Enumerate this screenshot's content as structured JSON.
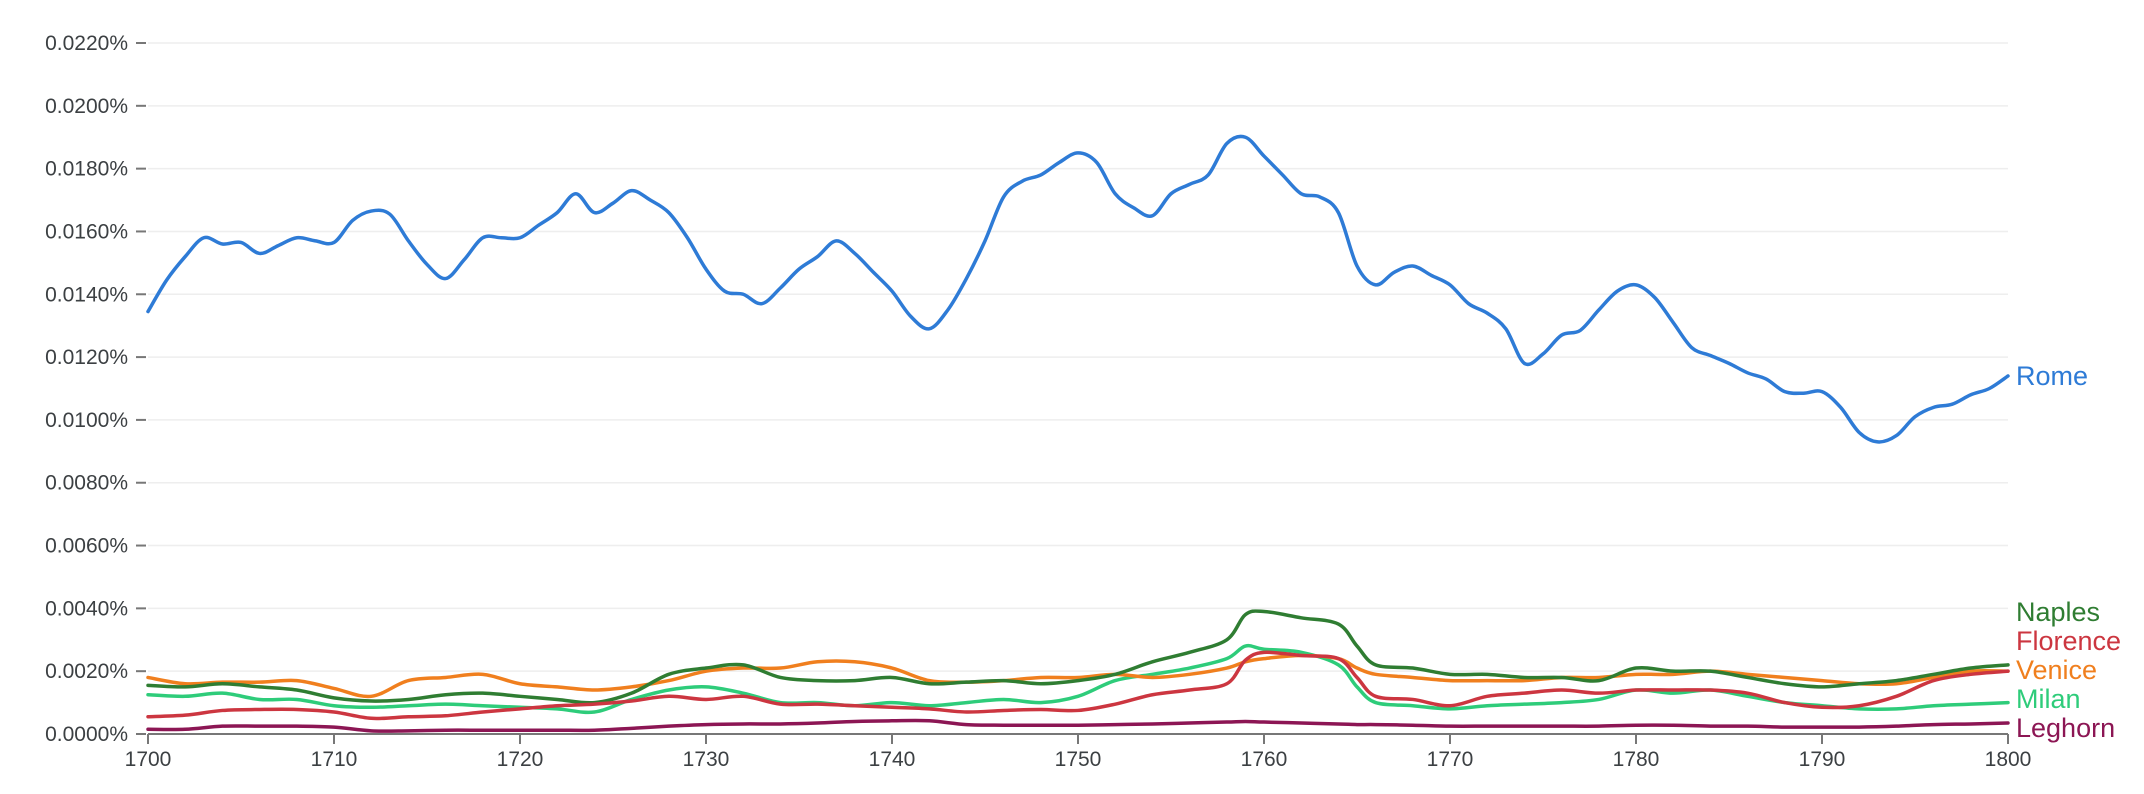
{
  "chart_data": {
    "type": "line",
    "title": "",
    "xlabel": "",
    "ylabel": "",
    "xlim": [
      1700,
      1800
    ],
    "ylim": [
      0,
      0.022
    ],
    "grid": true,
    "legend": "inline-right",
    "y_ticks": [
      "0.0000%",
      "0.0020%",
      "0.0040%",
      "0.0060%",
      "0.0080%",
      "0.0100%",
      "0.0120%",
      "0.0140%",
      "0.0160%",
      "0.0180%",
      "0.0200%",
      "0.0220%"
    ],
    "x_ticks": [
      "1700",
      "1710",
      "1720",
      "1730",
      "1740",
      "1750",
      "1760",
      "1770",
      "1780",
      "1790",
      "1800"
    ],
    "series": [
      {
        "name": "Rome",
        "color": "#2e7bd6",
        "x": [
          1700,
          1701,
          1702,
          1703,
          1704,
          1705,
          1706,
          1707,
          1708,
          1709,
          1710,
          1711,
          1712,
          1713,
          1714,
          1715,
          1716,
          1717,
          1718,
          1719,
          1720,
          1721,
          1722,
          1723,
          1724,
          1725,
          1726,
          1727,
          1728,
          1729,
          1730,
          1731,
          1732,
          1733,
          1734,
          1735,
          1736,
          1737,
          1738,
          1739,
          1740,
          1741,
          1742,
          1743,
          1744,
          1745,
          1746,
          1747,
          1748,
          1749,
          1750,
          1751,
          1752,
          1753,
          1754,
          1755,
          1756,
          1757,
          1758,
          1759,
          1760,
          1761,
          1762,
          1763,
          1764,
          1765,
          1766,
          1767,
          1768,
          1769,
          1770,
          1771,
          1772,
          1773,
          1774,
          1775,
          1776,
          1777,
          1778,
          1779,
          1780,
          1781,
          1782,
          1783,
          1784,
          1785,
          1786,
          1787,
          1788,
          1789,
          1790,
          1791,
          1792,
          1793,
          1794,
          1795,
          1796,
          1797,
          1798,
          1799,
          1800
        ],
        "values": [
          0.01345,
          0.01445,
          0.0152,
          0.0158,
          0.0156,
          0.01565,
          0.0153,
          0.01555,
          0.0158,
          0.0157,
          0.01565,
          0.01635,
          0.01665,
          0.01655,
          0.0157,
          0.01495,
          0.0145,
          0.0151,
          0.0158,
          0.0158,
          0.0158,
          0.0162,
          0.0166,
          0.0172,
          0.0166,
          0.0169,
          0.0173,
          0.017,
          0.0166,
          0.0158,
          0.0148,
          0.0141,
          0.014,
          0.0137,
          0.0142,
          0.0148,
          0.0152,
          0.0157,
          0.0153,
          0.0147,
          0.0141,
          0.0133,
          0.0129,
          0.0135,
          0.0145,
          0.0157,
          0.0171,
          0.0176,
          0.0178,
          0.0182,
          0.0185,
          0.0182,
          0.0172,
          0.01675,
          0.0165,
          0.0172,
          0.0175,
          0.0178,
          0.0188,
          0.019,
          0.0184,
          0.0178,
          0.0172,
          0.0171,
          0.0166,
          0.0149,
          0.0143,
          0.0147,
          0.0149,
          0.0146,
          0.0143,
          0.0137,
          0.0134,
          0.0129,
          0.0118,
          0.0121,
          0.0127,
          0.01285,
          0.0135,
          0.0141,
          0.0143,
          0.0139,
          0.0131,
          0.0123,
          0.01205,
          0.0118,
          0.0115,
          0.0113,
          0.0109,
          0.01085,
          0.0109,
          0.0104,
          0.0096,
          0.0093,
          0.0095,
          0.0101,
          0.0104,
          0.0105,
          0.0108,
          0.011,
          0.0114
        ]
      },
      {
        "name": "Florence",
        "color": "#cc3640",
        "x": [
          1700,
          1702,
          1704,
          1706,
          1708,
          1710,
          1712,
          1714,
          1716,
          1718,
          1720,
          1722,
          1724,
          1726,
          1728,
          1730,
          1732,
          1734,
          1736,
          1738,
          1740,
          1742,
          1744,
          1746,
          1748,
          1750,
          1752,
          1754,
          1756,
          1758,
          1759,
          1760,
          1762,
          1764,
          1765,
          1766,
          1768,
          1770,
          1772,
          1774,
          1776,
          1778,
          1780,
          1782,
          1784,
          1786,
          1788,
          1790,
          1792,
          1794,
          1796,
          1798,
          1800
        ],
        "values": [
          0.00055,
          0.0006,
          0.00075,
          0.00078,
          0.00078,
          0.0007,
          0.0005,
          0.00055,
          0.00058,
          0.0007,
          0.0008,
          0.0009,
          0.00095,
          0.00105,
          0.0012,
          0.0011,
          0.0012,
          0.00095,
          0.00095,
          0.0009,
          0.00085,
          0.0008,
          0.0007,
          0.00075,
          0.00078,
          0.00075,
          0.00095,
          0.00125,
          0.0014,
          0.0016,
          0.00235,
          0.0026,
          0.0025,
          0.0024,
          0.0018,
          0.0012,
          0.0011,
          0.0009,
          0.0012,
          0.0013,
          0.0014,
          0.0013,
          0.0014,
          0.0014,
          0.0014,
          0.0013,
          0.001,
          0.00085,
          0.0009,
          0.0012,
          0.0017,
          0.0019,
          0.002
        ]
      },
      {
        "name": "Naples",
        "color": "#2f7d32",
        "x": [
          1700,
          1702,
          1704,
          1706,
          1708,
          1710,
          1712,
          1714,
          1716,
          1718,
          1720,
          1722,
          1724,
          1726,
          1728,
          1730,
          1732,
          1734,
          1736,
          1738,
          1740,
          1742,
          1744,
          1746,
          1748,
          1750,
          1752,
          1754,
          1756,
          1758,
          1759,
          1760,
          1762,
          1764,
          1765,
          1766,
          1768,
          1770,
          1772,
          1774,
          1776,
          1778,
          1780,
          1782,
          1784,
          1786,
          1788,
          1790,
          1792,
          1794,
          1796,
          1798,
          1800
        ],
        "values": [
          0.00155,
          0.0015,
          0.0016,
          0.0015,
          0.0014,
          0.00115,
          0.00105,
          0.0011,
          0.00125,
          0.0013,
          0.0012,
          0.0011,
          0.001,
          0.0013,
          0.0019,
          0.0021,
          0.0022,
          0.0018,
          0.0017,
          0.0017,
          0.0018,
          0.0016,
          0.00165,
          0.0017,
          0.0016,
          0.0017,
          0.0019,
          0.0023,
          0.0026,
          0.003,
          0.0038,
          0.0039,
          0.0037,
          0.0035,
          0.0028,
          0.0022,
          0.0021,
          0.0019,
          0.0019,
          0.0018,
          0.0018,
          0.0017,
          0.0021,
          0.002,
          0.002,
          0.0018,
          0.0016,
          0.0015,
          0.0016,
          0.0017,
          0.0019,
          0.0021,
          0.0022
        ]
      },
      {
        "name": "Venice",
        "color": "#f07f1e",
        "x": [
          1700,
          1702,
          1704,
          1706,
          1708,
          1710,
          1712,
          1714,
          1716,
          1718,
          1720,
          1722,
          1724,
          1726,
          1728,
          1730,
          1732,
          1734,
          1736,
          1738,
          1740,
          1742,
          1744,
          1746,
          1748,
          1750,
          1752,
          1754,
          1756,
          1758,
          1759,
          1760,
          1762,
          1764,
          1765,
          1766,
          1768,
          1770,
          1772,
          1774,
          1776,
          1778,
          1780,
          1782,
          1784,
          1786,
          1788,
          1790,
          1792,
          1794,
          1796,
          1798,
          1800
        ],
        "values": [
          0.0018,
          0.0016,
          0.00165,
          0.00165,
          0.0017,
          0.00145,
          0.0012,
          0.0017,
          0.0018,
          0.0019,
          0.0016,
          0.0015,
          0.0014,
          0.0015,
          0.0017,
          0.002,
          0.0021,
          0.0021,
          0.0023,
          0.0023,
          0.0021,
          0.0017,
          0.00165,
          0.0017,
          0.0018,
          0.0018,
          0.0019,
          0.0018,
          0.0019,
          0.0021,
          0.0023,
          0.0024,
          0.0025,
          0.0024,
          0.0021,
          0.0019,
          0.0018,
          0.0017,
          0.0017,
          0.0017,
          0.0018,
          0.0018,
          0.0019,
          0.0019,
          0.002,
          0.0019,
          0.0018,
          0.0017,
          0.0016,
          0.0016,
          0.0018,
          0.002,
          0.002
        ]
      },
      {
        "name": "Milan",
        "color": "#2ecc7a",
        "x": [
          1700,
          1702,
          1704,
          1706,
          1708,
          1710,
          1712,
          1714,
          1716,
          1718,
          1720,
          1722,
          1724,
          1726,
          1728,
          1730,
          1732,
          1734,
          1736,
          1738,
          1740,
          1742,
          1744,
          1746,
          1748,
          1750,
          1752,
          1754,
          1756,
          1758,
          1759,
          1760,
          1762,
          1764,
          1765,
          1766,
          1768,
          1770,
          1772,
          1774,
          1776,
          1778,
          1780,
          1782,
          1784,
          1786,
          1788,
          1790,
          1792,
          1794,
          1796,
          1798,
          1800
        ],
        "values": [
          0.00125,
          0.0012,
          0.0013,
          0.0011,
          0.0011,
          0.0009,
          0.00085,
          0.0009,
          0.00095,
          0.0009,
          0.00085,
          0.0008,
          0.0007,
          0.0011,
          0.0014,
          0.0015,
          0.0013,
          0.001,
          0.001,
          0.0009,
          0.001,
          0.0009,
          0.001,
          0.0011,
          0.001,
          0.0012,
          0.0017,
          0.0019,
          0.0021,
          0.0024,
          0.0028,
          0.0027,
          0.0026,
          0.0022,
          0.0015,
          0.001,
          0.0009,
          0.0008,
          0.0009,
          0.00095,
          0.001,
          0.0011,
          0.0014,
          0.0013,
          0.0014,
          0.0012,
          0.001,
          0.0009,
          0.0008,
          0.0008,
          0.0009,
          0.00095,
          0.001
        ]
      },
      {
        "name": "Leghorn",
        "color": "#8c1654",
        "x": [
          1700,
          1702,
          1704,
          1706,
          1708,
          1710,
          1712,
          1714,
          1716,
          1718,
          1720,
          1722,
          1724,
          1726,
          1728,
          1730,
          1732,
          1734,
          1736,
          1738,
          1740,
          1742,
          1744,
          1746,
          1748,
          1750,
          1752,
          1754,
          1756,
          1758,
          1759,
          1760,
          1762,
          1764,
          1765,
          1766,
          1768,
          1770,
          1772,
          1774,
          1776,
          1778,
          1780,
          1782,
          1784,
          1786,
          1788,
          1790,
          1792,
          1794,
          1796,
          1798,
          1800
        ],
        "values": [
          0.00015,
          0.00015,
          0.00025,
          0.00025,
          0.00025,
          0.00022,
          0.0001,
          0.0001,
          0.00012,
          0.00012,
          0.00012,
          0.00012,
          0.00012,
          0.00018,
          0.00025,
          0.0003,
          0.00032,
          0.00032,
          0.00035,
          0.0004,
          0.00042,
          0.00042,
          0.0003,
          0.00028,
          0.00028,
          0.00028,
          0.0003,
          0.00032,
          0.00035,
          0.00038,
          0.0004,
          0.00038,
          0.00035,
          0.00032,
          0.0003,
          0.0003,
          0.00028,
          0.00025,
          0.00025,
          0.00025,
          0.00025,
          0.00025,
          0.00028,
          0.00028,
          0.00025,
          0.00025,
          0.00022,
          0.00022,
          0.00022,
          0.00025,
          0.0003,
          0.00032,
          0.00035
        ]
      }
    ]
  }
}
